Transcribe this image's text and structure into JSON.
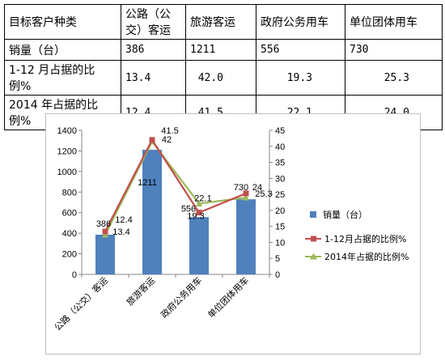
{
  "table": {
    "headers": [
      "目标客户种类",
      "公路（公交）客运",
      "旅游客运",
      "政府公务用车",
      "单位团体用车"
    ],
    "rows": [
      {
        "label": "销量（台）",
        "values": [
          "386",
          "1211",
          "556",
          "730"
        ]
      },
      {
        "label": "1-12 月占据的比例%",
        "values": [
          "13.4",
          "42.0",
          "19.3",
          "25.3"
        ]
      },
      {
        "label": "2014 年占据的比例%",
        "values": [
          "12.4",
          "41.5",
          "22.1",
          "24.0"
        ]
      }
    ]
  },
  "chart_data": {
    "type": "bar",
    "categories": [
      "公路（公交）客运",
      "旅游客运",
      "政府公务用车",
      "单位团体用车"
    ],
    "series": [
      {
        "name": "销量（台）",
        "type": "bar",
        "axis": "left",
        "values": [
          386,
          1211,
          556,
          730
        ],
        "color": "#4f81bd"
      },
      {
        "name": "1-12月占据的比例%",
        "type": "line",
        "axis": "right",
        "marker": "square",
        "values": [
          13.4,
          42,
          19.3,
          25.3
        ],
        "color": "#c0504d"
      },
      {
        "name": "2014年占据的比例%",
        "type": "line",
        "axis": "right",
        "marker": "triangle",
        "values": [
          12.4,
          41.5,
          22.1,
          24
        ],
        "color": "#9bbb59"
      }
    ],
    "ylim": [
      0,
      1400
    ],
    "yticks": [
      0,
      200,
      400,
      600,
      800,
      1000,
      1200,
      1400
    ],
    "y2lim": [
      0,
      45
    ],
    "y2ticks": [
      0,
      5,
      10,
      15,
      20,
      25,
      30,
      35,
      40,
      45
    ],
    "data_labels": {
      "bar": [
        "386",
        "1211",
        "556",
        "730"
      ],
      "line1": [
        "13.4",
        "42",
        "19.3",
        "25.3"
      ],
      "line2": [
        "12.4",
        "41.5",
        "22.1",
        "24"
      ]
    },
    "legend_position": "right",
    "grid": false
  }
}
